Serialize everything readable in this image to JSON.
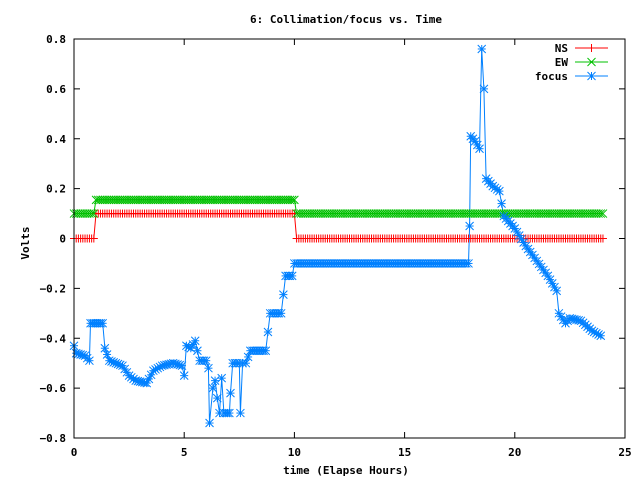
{
  "chart_data": {
    "type": "line",
    "title": "6: Collimation/focus vs. Time",
    "xlabel": "time (Elapse Hours)",
    "ylabel": "Volts",
    "xlim": [
      0,
      25
    ],
    "ylim": [
      -0.8,
      0.8
    ],
    "xticks": [
      0,
      5,
      10,
      15,
      20,
      25
    ],
    "yticks": [
      -0.8,
      -0.6,
      -0.4,
      -0.2,
      0,
      0.2,
      0.4,
      0.6,
      0.8
    ],
    "xtick_labels": [
      "0",
      "5",
      "10",
      "15",
      "20",
      "25"
    ],
    "ytick_labels": [
      "−0.8",
      "−0.6",
      "−0.4",
      "−0.2",
      "0",
      "0.2",
      "0.4",
      "0.6",
      "0.8"
    ],
    "grid": false,
    "legend_position": "top-right",
    "series": [
      {
        "name": "NS",
        "color": "#ff0000",
        "marker": "plus",
        "points": [
          [
            0,
            0
          ],
          [
            0.9,
            0
          ],
          [
            1.0,
            0.1
          ],
          [
            10.0,
            0.1
          ],
          [
            10.1,
            0
          ],
          [
            24,
            0
          ]
        ]
      },
      {
        "name": "EW",
        "color": "#00c000",
        "marker": "cross",
        "points": [
          [
            0,
            0.1
          ],
          [
            0.9,
            0.1
          ],
          [
            1.0,
            0.155
          ],
          [
            10.0,
            0.155
          ],
          [
            10.1,
            0.1
          ],
          [
            24,
            0.1
          ]
        ]
      },
      {
        "name": "focus",
        "color": "#0080ff",
        "marker": "star",
        "points": [
          [
            0,
            -0.43
          ],
          [
            0.1,
            -0.46
          ],
          [
            0.5,
            -0.47
          ],
          [
            0.7,
            -0.49
          ],
          [
            0.75,
            -0.34
          ],
          [
            1.3,
            -0.34
          ],
          [
            1.4,
            -0.44
          ],
          [
            1.6,
            -0.49
          ],
          [
            2.2,
            -0.51
          ],
          [
            2.5,
            -0.55
          ],
          [
            2.8,
            -0.57
          ],
          [
            3.3,
            -0.58
          ],
          [
            3.6,
            -0.53
          ],
          [
            4.0,
            -0.51
          ],
          [
            4.5,
            -0.5
          ],
          [
            4.9,
            -0.51
          ],
          [
            5.0,
            -0.55
          ],
          [
            5.1,
            -0.43
          ],
          [
            5.3,
            -0.44
          ],
          [
            5.5,
            -0.41
          ],
          [
            5.7,
            -0.49
          ],
          [
            6.0,
            -0.49
          ],
          [
            6.1,
            -0.52
          ],
          [
            6.15,
            -0.74
          ],
          [
            6.3,
            -0.6
          ],
          [
            6.4,
            -0.57
          ],
          [
            6.5,
            -0.64
          ],
          [
            6.6,
            -0.7
          ],
          [
            6.7,
            -0.56
          ],
          [
            6.8,
            -0.7
          ],
          [
            7.05,
            -0.7
          ],
          [
            7.1,
            -0.62
          ],
          [
            7.2,
            -0.5
          ],
          [
            7.5,
            -0.5
          ],
          [
            7.55,
            -0.7
          ],
          [
            7.65,
            -0.5
          ],
          [
            7.8,
            -0.5
          ],
          [
            8.0,
            -0.45
          ],
          [
            8.7,
            -0.45
          ],
          [
            8.9,
            -0.3
          ],
          [
            9.2,
            -0.3
          ],
          [
            9.4,
            -0.3
          ],
          [
            9.6,
            -0.15
          ],
          [
            9.9,
            -0.15
          ],
          [
            10.0,
            -0.1
          ],
          [
            17.9,
            -0.1
          ],
          [
            17.95,
            0.05
          ],
          [
            18.0,
            0.41
          ],
          [
            18.2,
            0.39
          ],
          [
            18.4,
            0.36
          ],
          [
            18.5,
            0.76
          ],
          [
            18.6,
            0.6
          ],
          [
            18.7,
            0.24
          ],
          [
            19.0,
            0.21
          ],
          [
            19.3,
            0.19
          ],
          [
            19.5,
            0.09
          ],
          [
            20.0,
            0.04
          ],
          [
            20.5,
            -0.03
          ],
          [
            21.0,
            -0.09
          ],
          [
            21.5,
            -0.15
          ],
          [
            21.9,
            -0.21
          ],
          [
            22.0,
            -0.3
          ],
          [
            22.3,
            -0.34
          ],
          [
            22.5,
            -0.32
          ],
          [
            23.0,
            -0.33
          ],
          [
            23.5,
            -0.37
          ],
          [
            23.9,
            -0.39
          ]
        ]
      }
    ]
  }
}
